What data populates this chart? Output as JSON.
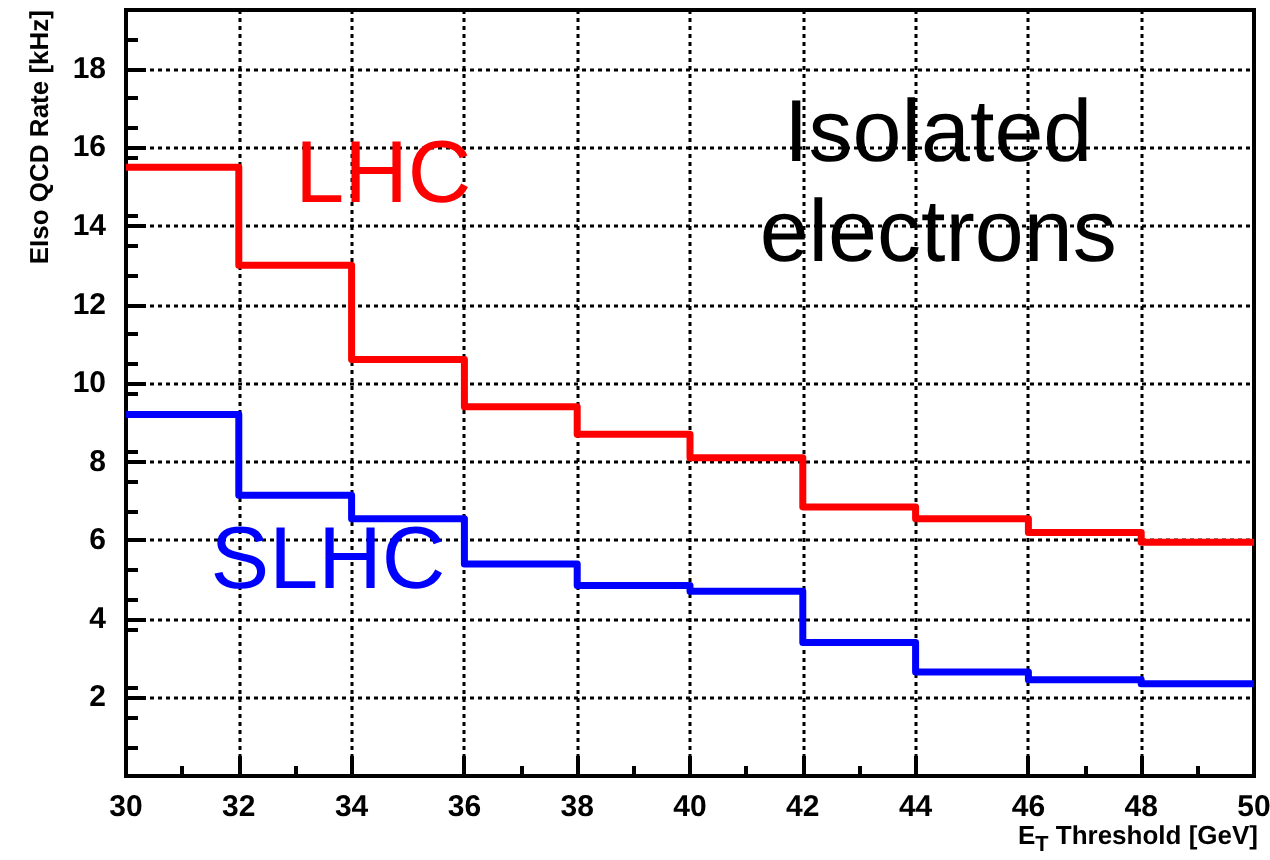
{
  "chart_data": {
    "type": "step",
    "xlabel": "E$_{T}$ Threshold [GeV]",
    "ylabel": "EIso QCD Rate [kHz]",
    "x": [
      30,
      32,
      34,
      36,
      38,
      40,
      42,
      44,
      46,
      48,
      50
    ],
    "series": [
      {
        "name": "LHC",
        "color": "#ff0000",
        "values": [
          15.5,
          13.0,
          10.6,
          9.4,
          8.7,
          8.1,
          6.85,
          6.55,
          6.2,
          5.95,
          5.95
        ]
      },
      {
        "name": "SLHC",
        "color": "#0000ff",
        "values": [
          9.2,
          7.15,
          6.55,
          5.4,
          4.85,
          4.7,
          3.4,
          2.65,
          2.45,
          2.35,
          2.35
        ]
      }
    ],
    "annotations": [
      "Isolated electrons"
    ],
    "xlim": [
      30,
      50
    ],
    "xticks": [
      30,
      32,
      34,
      36,
      38,
      40,
      42,
      44,
      46,
      48,
      50
    ],
    "ylim": [
      0,
      19.5
    ],
    "yticks": [
      2,
      4,
      6,
      8,
      10,
      12,
      14,
      16,
      18
    ],
    "grid": true,
    "legend": false
  }
}
